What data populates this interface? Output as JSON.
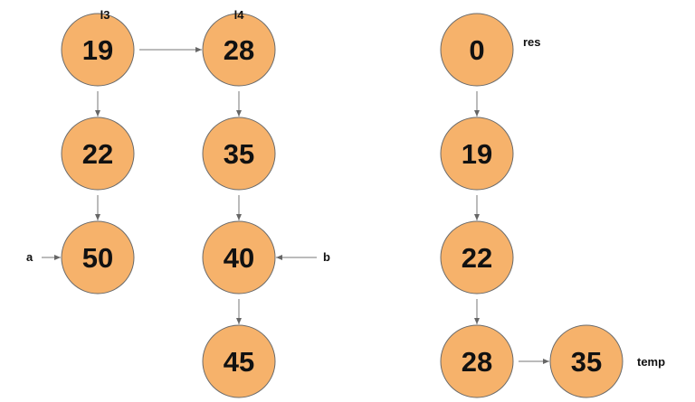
{
  "colors": {
    "node_fill": "#F6B26B",
    "node_stroke": "#6b6b6b",
    "edge": "#777777",
    "text": "#111111"
  },
  "nodes": [
    {
      "id": "l3-19",
      "label": "19"
    },
    {
      "id": "l3-22",
      "label": "22"
    },
    {
      "id": "l3-50",
      "label": "50"
    },
    {
      "id": "l4-28",
      "label": "28"
    },
    {
      "id": "l4-35",
      "label": "35"
    },
    {
      "id": "l4-40",
      "label": "40"
    },
    {
      "id": "l4-45",
      "label": "45"
    },
    {
      "id": "res-0",
      "label": "0"
    },
    {
      "id": "res-19",
      "label": "19"
    },
    {
      "id": "res-22",
      "label": "22"
    },
    {
      "id": "res-28",
      "label": "28"
    },
    {
      "id": "res-35",
      "label": "35"
    }
  ],
  "edges": [
    {
      "from": "l3-19",
      "to": "l4-28"
    },
    {
      "from": "l3-19",
      "to": "l3-22"
    },
    {
      "from": "l3-22",
      "to": "l3-50"
    },
    {
      "from": "l4-28",
      "to": "l4-35"
    },
    {
      "from": "l4-35",
      "to": "l4-40"
    },
    {
      "from": "l4-40",
      "to": "l4-45"
    },
    {
      "from": "res-0",
      "to": "res-19"
    },
    {
      "from": "res-19",
      "to": "res-22"
    },
    {
      "from": "res-22",
      "to": "res-28"
    },
    {
      "from": "res-28",
      "to": "res-35"
    },
    {
      "from": "ptr-a",
      "to": "l3-50"
    },
    {
      "from": "ptr-b",
      "to": "l4-40"
    }
  ],
  "labels": {
    "l3": "l3",
    "l4": "l4",
    "res": "res",
    "temp": "temp",
    "a": "a",
    "b": "b"
  }
}
